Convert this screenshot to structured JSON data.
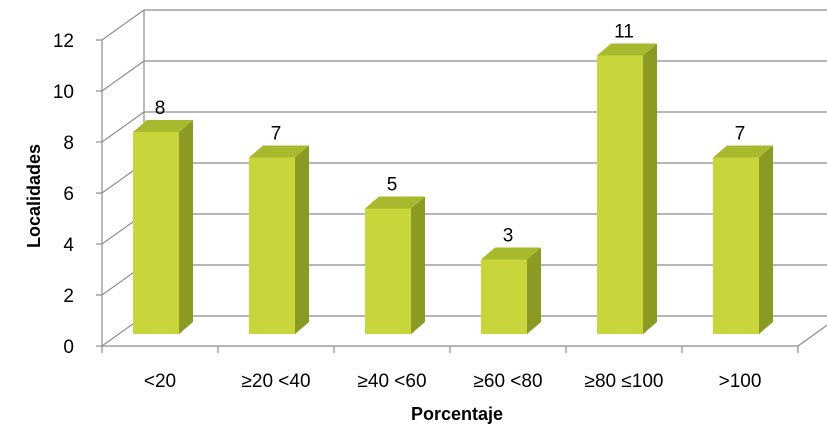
{
  "chart_data": {
    "type": "bar",
    "categories": [
      "<20",
      "≥20 <40",
      "≥40 <60",
      "≥60 <80",
      "≥80 ≤100",
      ">100"
    ],
    "values": [
      8,
      7,
      5,
      3,
      11,
      7
    ],
    "data_labels": [
      "8",
      "7",
      "5",
      "3",
      "11",
      "7"
    ],
    "xlabel": "Porcentaje",
    "ylabel": "Localidades",
    "ylim": [
      0,
      12
    ],
    "y_ticks": [
      "0",
      "2",
      "4",
      "6",
      "8",
      "10",
      "12"
    ],
    "grid": true,
    "legend": "none",
    "colors": {
      "bar_front": "#c8d63c",
      "bar_side": "#8a9a22",
      "bar_top": "#a9b92e",
      "grid": "#8c8c8c",
      "axis": "#8c8c8c"
    }
  }
}
